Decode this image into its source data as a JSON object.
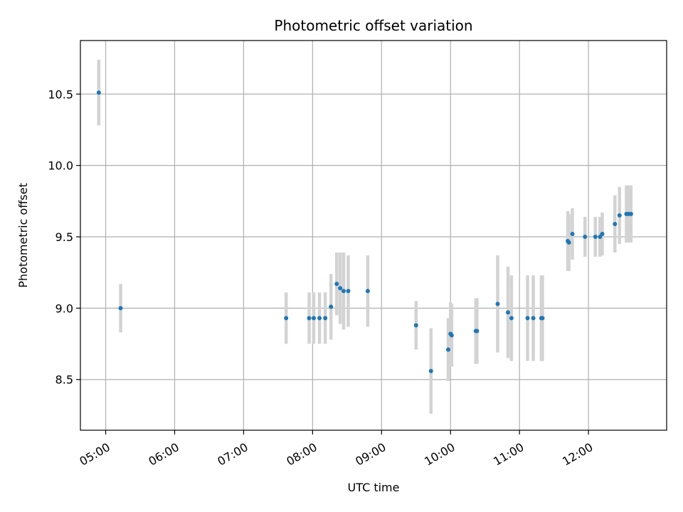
{
  "chart_data": {
    "type": "scatter",
    "title": "Photometric offset variation",
    "xlabel": "UTC time",
    "ylabel": "Photometric offset",
    "grid": true,
    "xlim": [
      "04:38",
      "13:08"
    ],
    "ylim": [
      8.145,
      10.875
    ],
    "x_ticks": [
      "05:00",
      "06:00",
      "07:00",
      "08:00",
      "09:00",
      "10:00",
      "11:00",
      "12:00"
    ],
    "y_ticks": [
      "8.5",
      "9.0",
      "9.5",
      "10.0",
      "10.5"
    ],
    "colors": {
      "points": "#1f77b4",
      "error_bars": "#d3d3d3",
      "grid": "#b0b0b0",
      "axes": "#000000"
    },
    "series": [
      {
        "points": [
          {
            "x": "04:54",
            "y": 10.51,
            "err": 0.23
          },
          {
            "x": "05:13",
            "y": 9.0,
            "err": 0.17
          },
          {
            "x": "07:37",
            "y": 8.93,
            "err": 0.18
          },
          {
            "x": "07:57",
            "y": 8.93,
            "err": 0.18
          },
          {
            "x": "08:01",
            "y": 8.93,
            "err": 0.18
          },
          {
            "x": "08:06",
            "y": 8.93,
            "err": 0.18
          },
          {
            "x": "08:11",
            "y": 8.93,
            "err": 0.18
          },
          {
            "x": "08:16",
            "y": 9.01,
            "err": 0.23
          },
          {
            "x": "08:21",
            "y": 9.17,
            "err": 0.22
          },
          {
            "x": "08:24",
            "y": 9.14,
            "err": 0.25
          },
          {
            "x": "08:27",
            "y": 9.12,
            "err": 0.27
          },
          {
            "x": "08:31",
            "y": 9.12,
            "err": 0.25
          },
          {
            "x": "08:48",
            "y": 9.12,
            "err": 0.25
          },
          {
            "x": "09:30",
            "y": 8.88,
            "err": 0.17
          },
          {
            "x": "09:43",
            "y": 8.56,
            "err": 0.3
          },
          {
            "x": "09:58",
            "y": 8.71,
            "err": 0.22
          },
          {
            "x": "10:00",
            "y": 8.82,
            "err": 0.22
          },
          {
            "x": "10:01",
            "y": 8.81,
            "err": 0.22
          },
          {
            "x": "10:22",
            "y": 8.84,
            "err": 0.23
          },
          {
            "x": "10:23",
            "y": 8.84,
            "err": 0.23
          },
          {
            "x": "10:41",
            "y": 9.03,
            "err": 0.34
          },
          {
            "x": "10:50",
            "y": 8.97,
            "err": 0.32
          },
          {
            "x": "10:53",
            "y": 8.93,
            "err": 0.3
          },
          {
            "x": "11:07",
            "y": 8.93,
            "err": 0.3
          },
          {
            "x": "11:12",
            "y": 8.93,
            "err": 0.3
          },
          {
            "x": "11:19",
            "y": 8.93,
            "err": 0.3
          },
          {
            "x": "11:20",
            "y": 8.93,
            "err": 0.3
          },
          {
            "x": "11:42",
            "y": 9.47,
            "err": 0.21
          },
          {
            "x": "11:43",
            "y": 9.46,
            "err": 0.2
          },
          {
            "x": "11:46",
            "y": 9.52,
            "err": 0.18
          },
          {
            "x": "11:57",
            "y": 9.5,
            "err": 0.14
          },
          {
            "x": "12:06",
            "y": 9.5,
            "err": 0.14
          },
          {
            "x": "12:10",
            "y": 9.5,
            "err": 0.14
          },
          {
            "x": "12:12",
            "y": 9.52,
            "err": 0.15
          },
          {
            "x": "12:23",
            "y": 9.59,
            "err": 0.2
          },
          {
            "x": "12:27",
            "y": 9.65,
            "err": 0.2
          },
          {
            "x": "12:33",
            "y": 9.66,
            "err": 0.2
          },
          {
            "x": "12:35",
            "y": 9.66,
            "err": 0.2
          },
          {
            "x": "12:37",
            "y": 9.66,
            "err": 0.2
          }
        ]
      }
    ]
  }
}
